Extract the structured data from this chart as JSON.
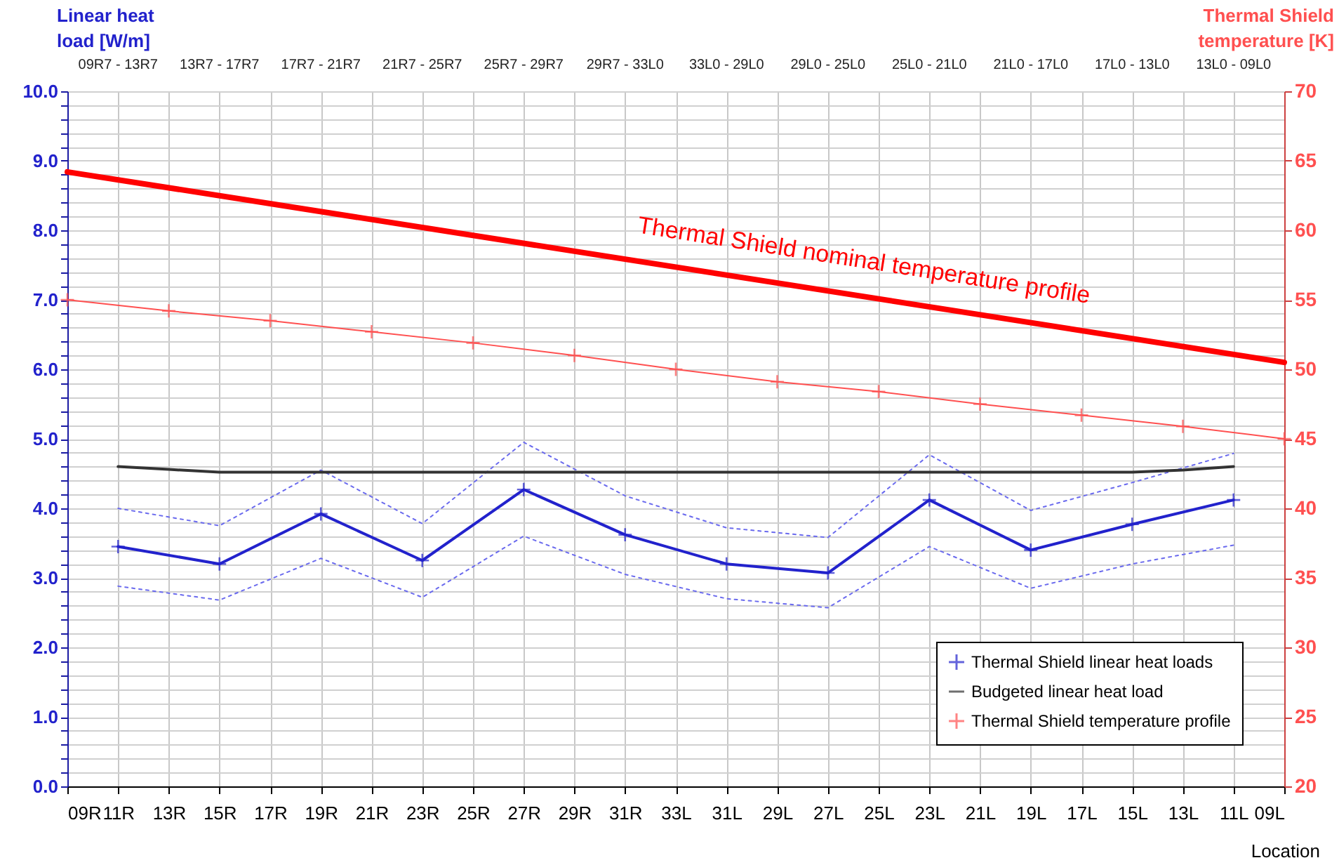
{
  "chart_data": {
    "type": "line",
    "xlabel": "Location",
    "ylabel": "Linear heat\nload [W/m]",
    "y2label": "Thermal Shield\ntemperature [K]",
    "categories": [
      "09R",
      "11R",
      "13R",
      "15R",
      "17R",
      "19R",
      "21R",
      "23R",
      "25R",
      "27R",
      "29R",
      "31R",
      "33L",
      "31L",
      "29L",
      "27L",
      "25L",
      "23L",
      "21L",
      "19L",
      "17L",
      "15L",
      "13L",
      "11L",
      "09L"
    ],
    "series": [
      {
        "name": "Thermal Shield linear heat loads",
        "color": "#2222cc",
        "marker": "cross",
        "x": [
          "11R",
          "15R",
          "19R",
          "23R",
          "27R",
          "31R",
          "31L",
          "27L",
          "23L",
          "19L",
          "15L",
          "11L"
        ],
        "values": [
          3.45,
          3.2,
          3.92,
          3.25,
          4.27,
          3.62,
          3.2,
          3.07,
          4.12,
          3.4,
          3.77,
          4.12
        ]
      },
      {
        "color": "#6a6aee",
        "marker": "none",
        "line_style": "dotted",
        "x": [
          "11R",
          "15R",
          "19R",
          "23R",
          "27R",
          "31R",
          "31L",
          "27L",
          "23L",
          "19L",
          "15L",
          "11L"
        ],
        "values": [
          4.0,
          3.75,
          4.55,
          3.78,
          4.95,
          4.18,
          3.72,
          3.58,
          4.77,
          3.97,
          4.37,
          4.79
        ]
      },
      {
        "color": "#6a6aee",
        "marker": "none",
        "line_style": "dotted",
        "x": [
          "11R",
          "15R",
          "19R",
          "23R",
          "27R",
          "31R",
          "31L",
          "27L",
          "23L",
          "19L",
          "15L",
          "11L"
        ],
        "values": [
          2.88,
          2.68,
          3.28,
          2.72,
          3.6,
          3.05,
          2.7,
          2.57,
          3.45,
          2.85,
          3.2,
          3.47
        ]
      },
      {
        "name": "Budgeted linear heat load",
        "color": "#333333",
        "marker": "none",
        "x": [
          "11R",
          "13R",
          "15R",
          "17R",
          "19R",
          "21R",
          "23R",
          "25R",
          "27R",
          "29R",
          "31R",
          "33L",
          "31L",
          "29L",
          "27L",
          "25L",
          "23L",
          "21L",
          "19L",
          "17L",
          "15L",
          "13L",
          "11L"
        ],
        "values": [
          4.6,
          4.56,
          4.52,
          4.52,
          4.52,
          4.52,
          4.52,
          4.52,
          4.52,
          4.52,
          4.52,
          4.52,
          4.52,
          4.52,
          4.52,
          4.52,
          4.52,
          4.52,
          4.52,
          4.52,
          4.52,
          4.55,
          4.6
        ]
      },
      {
        "name": "Thermal Shield temperature profile",
        "color": "#ff5050",
        "marker": "cross",
        "axis": "y2",
        "x": [
          "09R",
          "13R",
          "17R",
          "21R",
          "25R",
          "29R",
          "33L",
          "29L",
          "25L",
          "21L",
          "17L",
          "13L",
          "09L"
        ],
        "values": [
          55,
          54.2,
          53.5,
          52.7,
          51.9,
          51,
          50,
          49.1,
          48.4,
          47.5,
          46.7,
          45.9,
          45
        ]
      },
      {
        "color": "#ff0000",
        "marker": "none",
        "axis": "y2",
        "x": [
          "09R",
          "09L"
        ],
        "values": [
          64.2,
          50.5
        ]
      }
    ],
    "ylim": [
      0,
      10
    ],
    "yticks": [
      {
        "value": 0,
        "label": "0.0"
      },
      {
        "value": 0.2,
        "label": null
      },
      {
        "value": 0.4,
        "label": null
      },
      {
        "value": 0.6,
        "label": null
      },
      {
        "value": 0.8,
        "label": null
      },
      {
        "value": 1,
        "label": "1.0"
      },
      {
        "value": 1.2,
        "label": null
      },
      {
        "value": 1.4,
        "label": null
      },
      {
        "value": 1.6,
        "label": null
      },
      {
        "value": 1.8,
        "label": null
      },
      {
        "value": 2,
        "label": "2.0"
      },
      {
        "value": 2.2,
        "label": null
      },
      {
        "value": 2.4,
        "label": null
      },
      {
        "value": 2.6,
        "label": null
      },
      {
        "value": 2.8,
        "label": null
      },
      {
        "value": 3,
        "label": "3.0"
      },
      {
        "value": 3.2,
        "label": null
      },
      {
        "value": 3.4,
        "label": null
      },
      {
        "value": 3.6,
        "label": null
      },
      {
        "value": 3.8,
        "label": null
      },
      {
        "value": 4,
        "label": "4.0"
      },
      {
        "value": 4.2,
        "label": null
      },
      {
        "value": 4.4,
        "label": null
      },
      {
        "value": 4.6,
        "label": null
      },
      {
        "value": 4.8,
        "label": null
      },
      {
        "value": 5,
        "label": "5.0"
      },
      {
        "value": 5.2,
        "label": null
      },
      {
        "value": 5.4,
        "label": null
      },
      {
        "value": 5.6,
        "label": null
      },
      {
        "value": 5.8,
        "label": null
      },
      {
        "value": 6,
        "label": "6.0"
      },
      {
        "value": 6.2,
        "label": null
      },
      {
        "value": 6.4,
        "label": null
      },
      {
        "value": 6.6,
        "label": null
      },
      {
        "value": 6.8,
        "label": null
      },
      {
        "value": 7,
        "label": "7.0"
      },
      {
        "value": 7.2,
        "label": null
      },
      {
        "value": 7.4,
        "label": null
      },
      {
        "value": 7.6,
        "label": null
      },
      {
        "value": 7.8,
        "label": null
      },
      {
        "value": 8,
        "label": "8.0"
      },
      {
        "value": 8.2,
        "label": null
      },
      {
        "value": 8.4,
        "label": null
      },
      {
        "value": 8.6,
        "label": null
      },
      {
        "value": 8.8,
        "label": null
      },
      {
        "value": 9,
        "label": "9.0"
      },
      {
        "value": 9.2,
        "label": null
      },
      {
        "value": 9.4,
        "label": null
      },
      {
        "value": 9.6,
        "label": null
      },
      {
        "value": 9.8,
        "label": null
      },
      {
        "value": 10,
        "label": "10.0"
      }
    ],
    "y2lim": [
      20,
      70
    ],
    "y2ticks": [
      20,
      25,
      30,
      35,
      40,
      45,
      50,
      55,
      60,
      65,
      70
    ],
    "annotations": [
      "09R7 - 13R7",
      "13R7 - 17R7",
      "17R7 - 21R7",
      "21R7 - 25R7",
      "25R7 - 29R7",
      "29R7 - 33L0",
      "33L0 - 29L0",
      "29L0 - 25L0",
      "25L0 - 21L0",
      "21L0 - 17L0",
      "17L0 - 13L0",
      "13L0 - 09L0",
      "Thermal Shield nominal temperature profile"
    ],
    "grid": true,
    "legend": "bottom right",
    "line_style": "solid"
  }
}
